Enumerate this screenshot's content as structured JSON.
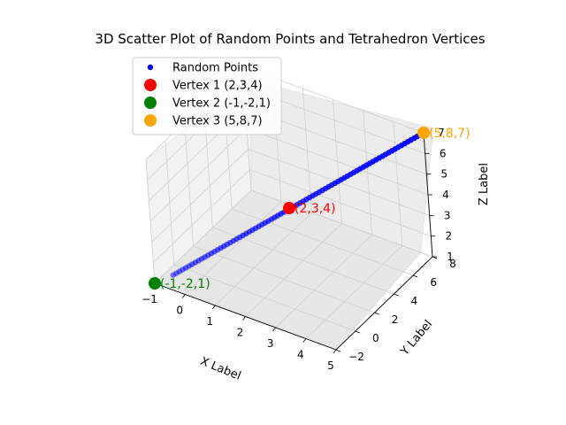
{
  "chart_data": {
    "type": "scatter",
    "projection": "3d",
    "title": "3D Scatter Plot of Random Points and Tetrahedron Vertices",
    "xlabel": "X Label",
    "ylabel": "Y Label",
    "zlabel": "Z Label",
    "xlim": [
      -1,
      5
    ],
    "ylim": [
      -2,
      8
    ],
    "zlim": [
      1,
      7
    ],
    "x_ticks": [
      -1,
      0,
      1,
      2,
      3,
      4,
      5
    ],
    "y_ticks": [
      -2,
      0,
      2,
      4,
      6,
      8
    ],
    "z_ticks": [
      1,
      2,
      3,
      4,
      5,
      6,
      7
    ],
    "grid": true,
    "legend_position": "top-left",
    "series": [
      {
        "name": "Random Points",
        "color": "#0000ff",
        "points_along_segment": {
          "from": [
            -0.6,
            -1.3,
            1.3
          ],
          "to": [
            5,
            8,
            7
          ],
          "count": 80
        }
      },
      {
        "name": "Vertex 1 (2,3,4)",
        "color": "#ff0000",
        "points": [
          [
            2,
            3,
            4
          ]
        ],
        "annotation": "(2,3,4)"
      },
      {
        "name": "Vertex 2 (-1,-2,1)",
        "color": "#008000",
        "points": [
          [
            -1,
            -2,
            1
          ]
        ],
        "annotation": "(-1,-2,1)"
      },
      {
        "name": "Vertex 3 (5,8,7)",
        "color": "#ffa500",
        "points": [
          [
            5,
            8,
            7
          ]
        ],
        "annotation": "(5,8,7)"
      }
    ]
  }
}
